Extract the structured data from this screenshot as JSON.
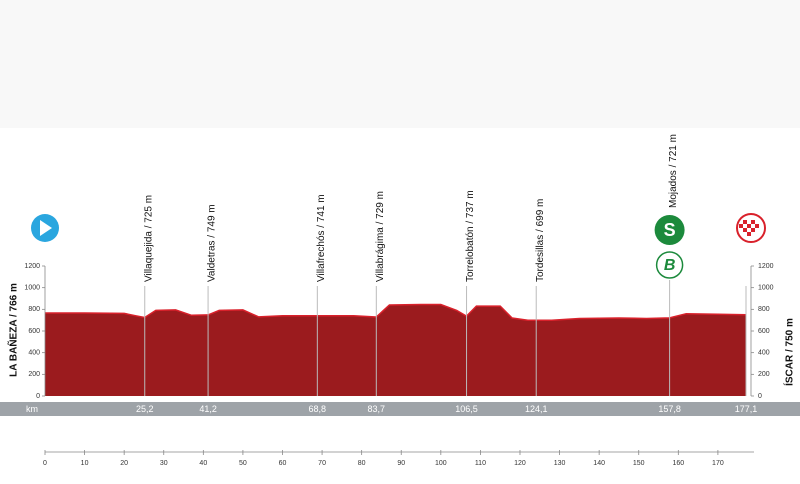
{
  "chart_data": {
    "type": "area",
    "start": "LA BAÑEZA / 766 m",
    "finish": "ÍSCAR / 750 m",
    "distance_label": "km",
    "x": [
      0,
      10,
      20,
      23,
      25.2,
      28,
      33,
      37,
      41.2,
      44,
      50,
      54,
      60,
      68.8,
      78,
      83.7,
      87,
      95,
      100,
      104,
      106.5,
      109,
      115,
      118,
      122,
      124.1,
      128,
      135,
      145,
      152,
      157.8,
      162,
      170,
      177.1
    ],
    "values": [
      766,
      766,
      762,
      740,
      725,
      790,
      795,
      745,
      749,
      790,
      795,
      730,
      740,
      741,
      740,
      729,
      840,
      845,
      845,
      790,
      737,
      830,
      830,
      720,
      700,
      699,
      700,
      715,
      720,
      715,
      721,
      760,
      755,
      750
    ],
    "color": "#9b1b1e",
    "line_color": "#d9212b",
    "xlim": [
      0,
      177.1
    ],
    "xticks": [
      0,
      10,
      20,
      30,
      40,
      50,
      60,
      70,
      80,
      90,
      100,
      110,
      120,
      130,
      140,
      150,
      160,
      170
    ],
    "ylim": [
      0,
      1200
    ],
    "yticks": [
      0,
      200,
      400,
      600,
      800,
      1000,
      1200
    ],
    "waypoints": [
      {
        "name": "Villaquejida / 725 m",
        "km": {
          "value": 25.2,
          "label": "25,2"
        }
      },
      {
        "name": "Valdetras / 749 m",
        "km": {
          "value": 41.2,
          "label": "41,2"
        }
      },
      {
        "name": "Villafrechós / 741 m",
        "km": {
          "value": 68.8,
          "label": "68,8"
        }
      },
      {
        "name": "Villabrágima / 729 m",
        "km": {
          "value": 83.7,
          "label": "83,7"
        }
      },
      {
        "name": "Torrelobatón / 737 m",
        "km": {
          "value": 106.5,
          "label": "106,5"
        }
      },
      {
        "name": "Tordesillas / 699 m",
        "km": {
          "value": 124.1,
          "label": "124,1"
        }
      },
      {
        "name": "Mojados / 721 m",
        "km": {
          "value": 157.8,
          "label": "157,8"
        },
        "icons": [
          "S",
          "B"
        ]
      },
      {
        "km": {
          "value": 177.1,
          "label": "177,1"
        }
      }
    ]
  }
}
